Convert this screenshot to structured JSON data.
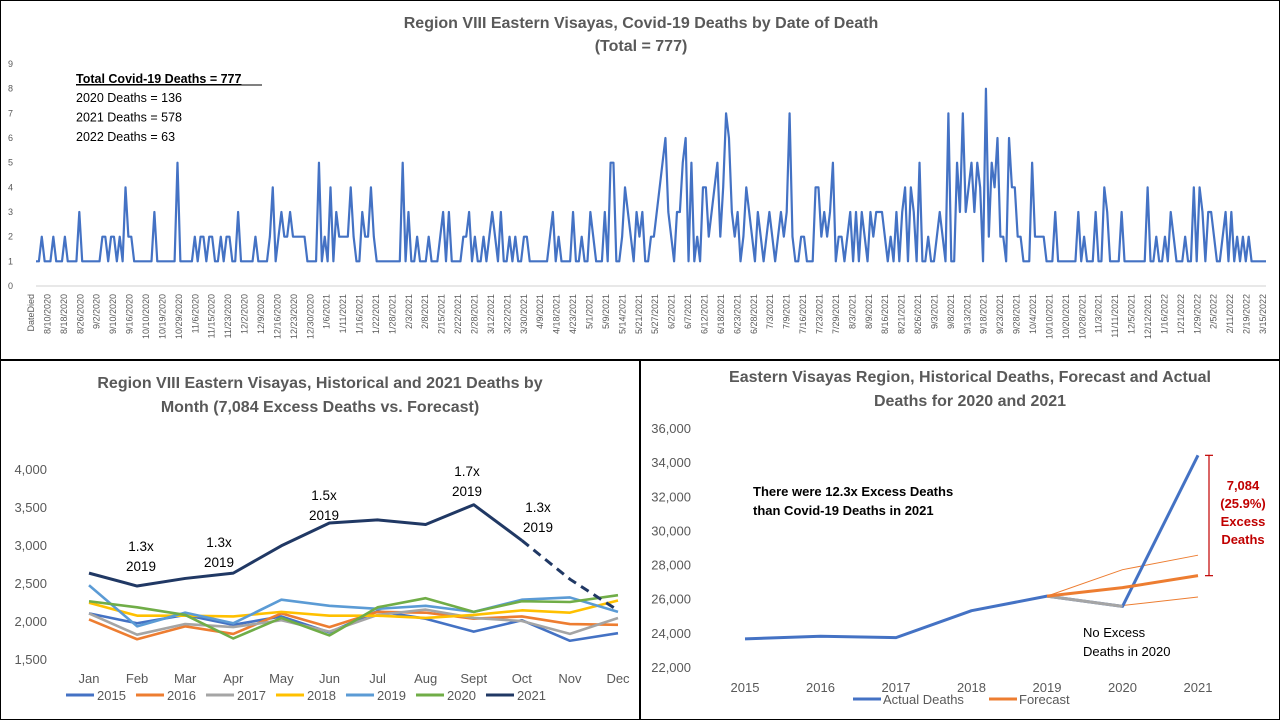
{
  "chart_data": [
    {
      "type": "line",
      "title": "Region VIII Eastern Visayas, Covid-19 Deaths by Date of Death",
      "subtitle": "(Total = 777)",
      "ylim": [
        0,
        9
      ],
      "y_ticks": [
        "0",
        "1",
        "2",
        "3",
        "4",
        "5",
        "6",
        "7",
        "8",
        "9"
      ],
      "x_tick_labels": [
        "DateDied",
        "8/10/2020",
        "8/18/2020",
        "8/26/2020",
        "9/2/2020",
        "9/10/2020",
        "9/16/2020",
        "10/10/2020",
        "10/19/2020",
        "10/29/2020",
        "11/6/2020",
        "11/15/2020",
        "11/23/2020",
        "12/2/2020",
        "12/9/2020",
        "12/16/2020",
        "12/23/2020",
        "12/30/2020",
        "1/6/2021",
        "1/11/2021",
        "1/16/2021",
        "1/22/2021",
        "1/28/2021",
        "2/3/2021",
        "2/8/2021",
        "2/15/2021",
        "2/22/2021",
        "2/28/2021",
        "3/12/2021",
        "3/22/2021",
        "3/30/2021",
        "4/9/2021",
        "4/18/2021",
        "4/23/2021",
        "5/1/2021",
        "5/9/2021",
        "5/14/2021",
        "5/21/2021",
        "5/27/2021",
        "6/2/2021",
        "6/7/2021",
        "6/12/2021",
        "6/18/2021",
        "6/23/2021",
        "6/28/2021",
        "7/3/2021",
        "7/9/2021",
        "7/16/2021",
        "7/23/2021",
        "7/29/2021",
        "8/3/2021",
        "8/9/2021",
        "8/16/2021",
        "8/21/2021",
        "8/26/2021",
        "9/3/2021",
        "9/8/2021",
        "9/13/2021",
        "9/18/2021",
        "9/23/2021",
        "9/28/2021",
        "10/4/2021",
        "10/10/2021",
        "10/20/2021",
        "10/28/2021",
        "11/3/2021",
        "11/11/2021",
        "12/5/2021",
        "12/12/2021",
        "1/16/2022",
        "1/21/2022",
        "1/29/2022",
        "2/5/2022",
        "2/11/2022",
        "2/19/2022",
        "3/15/2022"
      ],
      "values": [
        1,
        1,
        2,
        1,
        1,
        1,
        2,
        1,
        1,
        1,
        2,
        1,
        1,
        1,
        1,
        3,
        1,
        1,
        1,
        1,
        1,
        1,
        1,
        2,
        2,
        1,
        2,
        2,
        1,
        2,
        1,
        4,
        2,
        2,
        1,
        1,
        1,
        1,
        1,
        1,
        1,
        3,
        1,
        1,
        1,
        1,
        1,
        1,
        1,
        5,
        1,
        1,
        1,
        1,
        1,
        2,
        1,
        2,
        2,
        1,
        2,
        2,
        1,
        1,
        2,
        1,
        2,
        2,
        1,
        1,
        3,
        1,
        1,
        1,
        1,
        1,
        2,
        1,
        1,
        1,
        1,
        2,
        4,
        1,
        2,
        3,
        2,
        2,
        3,
        2,
        2,
        2,
        2,
        2,
        1,
        1,
        1,
        1,
        5,
        1,
        2,
        1,
        4,
        1,
        3,
        2,
        2,
        2,
        2,
        4,
        2,
        1,
        1,
        3,
        2,
        2,
        4,
        2,
        1,
        1,
        1,
        1,
        1,
        1,
        1,
        1,
        1,
        5,
        1,
        3,
        1,
        1,
        2,
        1,
        1,
        1,
        2,
        1,
        1,
        1,
        2,
        3,
        1,
        3,
        1,
        1,
        1,
        1,
        2,
        2,
        3,
        1,
        2,
        1,
        1,
        2,
        1,
        2,
        3,
        2,
        1,
        3,
        1,
        1,
        2,
        1,
        2,
        1,
        1,
        2,
        2,
        1,
        1,
        1,
        1,
        1,
        1,
        1,
        2,
        3,
        1,
        2,
        1,
        1,
        1,
        1,
        3,
        1,
        1,
        2,
        1,
        1,
        3,
        2,
        1,
        1,
        1,
        3,
        1,
        5,
        5,
        1,
        1,
        2,
        4,
        3,
        2,
        1,
        3,
        2,
        3,
        1,
        1,
        2,
        2,
        3,
        4,
        5,
        6,
        3,
        2,
        1,
        3,
        3,
        5,
        6,
        1,
        5,
        1,
        2,
        1,
        4,
        4,
        2,
        3,
        4,
        5,
        2,
        4,
        7,
        6,
        3,
        2,
        3,
        1,
        2,
        4,
        3,
        2,
        1,
        3,
        2,
        1,
        2,
        3,
        2,
        1,
        2,
        3,
        2,
        3,
        7,
        2,
        1,
        1,
        2,
        2,
        1,
        1,
        1,
        4,
        4,
        2,
        3,
        2,
        3,
        5,
        1,
        2,
        2,
        1,
        2,
        3,
        1,
        3,
        1,
        3,
        2,
        1,
        3,
        2,
        3,
        3,
        3,
        2,
        1,
        2,
        1,
        3,
        1,
        3,
        4,
        1,
        4,
        3,
        1,
        5,
        1,
        1,
        2,
        1,
        1,
        2,
        3,
        2,
        1,
        7,
        1,
        1,
        5,
        3,
        7,
        3,
        4,
        5,
        3,
        5,
        4,
        1,
        8,
        2,
        5,
        4,
        6,
        2,
        2,
        1,
        6,
        4,
        4,
        2,
        2,
        1,
        1,
        1,
        5,
        2,
        2,
        2,
        2,
        1,
        1,
        1,
        3,
        1,
        1,
        1,
        1,
        1,
        1,
        1,
        3,
        1,
        2,
        1,
        1,
        1,
        3,
        1,
        1,
        4,
        3,
        1,
        1,
        1,
        1,
        3,
        1,
        1,
        1,
        1,
        1,
        1,
        1,
        1,
        4,
        1,
        1,
        2,
        1,
        1,
        2,
        1,
        3,
        2,
        1,
        1,
        1,
        2,
        1,
        1,
        4,
        1,
        4,
        3,
        1,
        3,
        3,
        2,
        1,
        1,
        2,
        3,
        1,
        3,
        1,
        2,
        1,
        2,
        1,
        2,
        1,
        1,
        1,
        1,
        1,
        1
      ],
      "annotations": {
        "heading": "Total Covid-19 Deaths = 777",
        "lines": [
          "2020 Deaths = 136",
          "2021 Deaths = 578",
          "2022 Deaths = 63"
        ]
      },
      "color": "#4472C4"
    },
    {
      "type": "line",
      "title_lines": [
        "Region VIII Eastern Visayas, Historical and 2021 Deaths by",
        "Month (7,084 Excess Deaths vs. Forecast)"
      ],
      "categories": [
        "Jan",
        "Feb",
        "Mar",
        "Apr",
        "May",
        "Jun",
        "Jul",
        "Aug",
        "Sept",
        "Oct",
        "Nov",
        "Dec"
      ],
      "ylim": [
        1500,
        4000
      ],
      "y_ticks": [
        "1,500",
        "2,000",
        "2,500",
        "3,000",
        "3,500",
        "4,000"
      ],
      "series": [
        {
          "name": "2015",
          "color": "#4472C4",
          "values": [
            2100,
            1970,
            2080,
            1950,
            2060,
            1850,
            2130,
            2030,
            1860,
            2010,
            1740,
            1840
          ]
        },
        {
          "name": "2016",
          "color": "#ED7D31",
          "values": [
            2020,
            1760,
            1930,
            1830,
            2100,
            1920,
            2120,
            2110,
            2030,
            2060,
            1960,
            1950
          ]
        },
        {
          "name": "2017",
          "color": "#A5A5A5",
          "values": [
            2100,
            1820,
            1960,
            1920,
            2010,
            1860,
            2080,
            2150,
            2040,
            2000,
            1830,
            2040
          ]
        },
        {
          "name": "2018",
          "color": "#FFC000",
          "values": [
            2240,
            2070,
            2070,
            2060,
            2120,
            2070,
            2070,
            2040,
            2080,
            2140,
            2110,
            2270
          ]
        },
        {
          "name": "2019",
          "color": "#5B9BD5",
          "values": [
            2470,
            1930,
            2110,
            1970,
            2280,
            2200,
            2160,
            2200,
            2120,
            2280,
            2310,
            2120
          ]
        },
        {
          "name": "2020",
          "color": "#70AD47",
          "values": [
            2260,
            2180,
            2080,
            1770,
            2040,
            1810,
            2180,
            2300,
            2120,
            2260,
            2250,
            2340
          ]
        },
        {
          "name": "2021",
          "color": "#203864",
          "values": [
            2630,
            2460,
            2560,
            2630,
            2990,
            3290,
            3330,
            3270,
            3530,
            3060,
            2550,
            2140
          ],
          "dashed_from": 9
        }
      ],
      "annotations": [
        {
          "cat": "Feb",
          "lines": [
            "1.3x",
            "2019"
          ]
        },
        {
          "cat": "Apr",
          "lines": [
            "1.3x",
            "2019"
          ]
        },
        {
          "cat": "Jun",
          "lines": [
            "1.5x",
            "2019"
          ]
        },
        {
          "cat": "Sept",
          "lines": [
            "1.7x",
            "2019"
          ]
        },
        {
          "cat": "Oct",
          "lines": [
            "1.3x",
            "2019"
          ]
        }
      ],
      "legend": "bottom"
    },
    {
      "type": "line",
      "title_lines": [
        "Eastern Visayas Region, Historical Deaths, Forecast and Actual",
        "Deaths for 2020 and 2021"
      ],
      "categories": [
        "2015",
        "2016",
        "2017",
        "2018",
        "2019",
        "2020",
        "2021"
      ],
      "ylim": [
        22000,
        36000
      ],
      "y_ticks": [
        "22,000",
        "24,000",
        "26,000",
        "28,000",
        "30,000",
        "32,000",
        "34,000",
        "36,000"
      ],
      "series": [
        {
          "name": "Actual Deaths",
          "color": "#4472C4",
          "values": [
            23650,
            23800,
            23720,
            25300,
            26150,
            25550,
            34400
          ]
        },
        {
          "name": "Forecast",
          "color": "#ED7D31",
          "values": [
            null,
            null,
            null,
            null,
            26150,
            26650,
            27350
          ]
        }
      ],
      "forecast_upper": [
        null,
        null,
        null,
        null,
        26150,
        27700,
        28550
      ],
      "forecast_lower": [
        null,
        null,
        null,
        null,
        26150,
        25600,
        26100
      ],
      "gray_segment": [
        26150,
        25550
      ],
      "notes": {
        "excess_lines": [
          "There were 12.3x Excess Deaths",
          "than Covid-19 Deaths in 2021"
        ],
        "no_excess_lines": [
          "No Excess",
          "Deaths in 2020"
        ],
        "red_lines": [
          "7,084",
          "(25.9%)",
          "Excess",
          "Deaths"
        ]
      },
      "legend": "bottom"
    }
  ]
}
